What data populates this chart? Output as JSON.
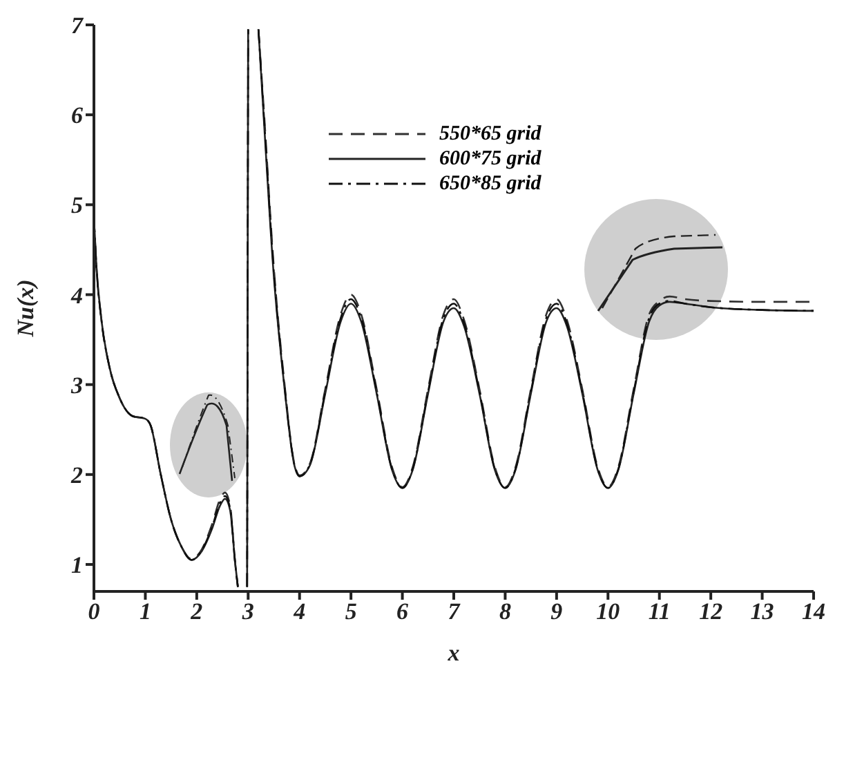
{
  "chart_data": {
    "type": "line",
    "xlabel": "x",
    "ylabel": "Nu(x)",
    "xlim": [
      0,
      14
    ],
    "xticks": [
      0,
      1,
      2,
      3,
      4,
      5,
      6,
      7,
      8,
      9,
      10,
      11,
      12,
      13,
      14
    ],
    "ylim": [
      0.7,
      7
    ],
    "yticks": [
      1,
      2,
      3,
      4,
      5,
      6,
      7
    ],
    "grid": false,
    "legend": "top",
    "marker": "none",
    "x": [
      0,
      0.05,
      0.15,
      0.3,
      0.5,
      0.75,
      1.0,
      1.1,
      1.3,
      1.5,
      1.7,
      1.9,
      2.1,
      2.3,
      2.45,
      2.55,
      2.65,
      2.75,
      2.8,
      2.9,
      2.98,
      3.0,
      3.1,
      3.2,
      3.3,
      3.5,
      3.7,
      3.9,
      4.0,
      4.2,
      4.5,
      4.8,
      5.0,
      5.2,
      5.5,
      5.8,
      6.0,
      6.2,
      6.5,
      6.8,
      7.0,
      7.2,
      7.5,
      7.8,
      8.0,
      8.2,
      8.5,
      8.8,
      9.0,
      9.2,
      9.5,
      9.8,
      10.0,
      10.2,
      10.5,
      10.8,
      11.0,
      11.2,
      11.5,
      12,
      13,
      14
    ],
    "series": [
      {
        "name": "550*65 grid",
        "color": "#303030",
        "line_style": "dashed",
        "values": [
          4.85,
          4.3,
          3.7,
          3.2,
          2.85,
          2.65,
          2.62,
          2.55,
          2.0,
          1.5,
          1.2,
          1.06,
          1.17,
          1.45,
          1.72,
          1.8,
          1.65,
          1.0,
          0.75,
          null,
          0.75,
          6.95,
          null,
          6.95,
          6.1,
          4.3,
          3.05,
          2.12,
          1.99,
          2.12,
          2.95,
          3.78,
          4.0,
          3.78,
          2.95,
          2.08,
          1.86,
          2.08,
          2.95,
          3.78,
          3.95,
          3.72,
          2.95,
          2.08,
          1.86,
          2.08,
          2.95,
          3.78,
          3.95,
          3.72,
          2.95,
          2.08,
          1.86,
          2.08,
          2.95,
          3.78,
          3.93,
          3.98,
          3.95,
          3.93,
          3.92,
          3.92
        ]
      },
      {
        "name": "600*75 grid",
        "color": "#222222",
        "line_style": "solid",
        "values": [
          4.85,
          4.3,
          3.7,
          3.2,
          2.85,
          2.65,
          2.62,
          2.55,
          2.0,
          1.5,
          1.2,
          1.05,
          1.15,
          1.4,
          1.65,
          1.73,
          1.6,
          1.0,
          0.75,
          null,
          0.75,
          6.95,
          null,
          6.95,
          6.0,
          4.2,
          3.0,
          2.1,
          1.98,
          2.1,
          2.9,
          3.7,
          3.9,
          3.7,
          2.9,
          2.05,
          1.85,
          2.05,
          2.9,
          3.7,
          3.85,
          3.65,
          2.9,
          2.05,
          1.85,
          2.05,
          2.9,
          3.7,
          3.85,
          3.65,
          2.9,
          2.05,
          1.85,
          2.05,
          2.9,
          3.7,
          3.88,
          3.92,
          3.9,
          3.86,
          3.83,
          3.82
        ]
      },
      {
        "name": "650*85 grid",
        "color": "#101010",
        "line_style": "dashdot",
        "values": [
          4.85,
          4.3,
          3.7,
          3.2,
          2.85,
          2.65,
          2.62,
          2.55,
          2.0,
          1.5,
          1.2,
          1.05,
          1.16,
          1.42,
          1.68,
          1.76,
          1.62,
          1.0,
          0.75,
          null,
          0.75,
          6.95,
          null,
          6.95,
          6.05,
          4.25,
          3.02,
          2.11,
          1.98,
          2.11,
          2.92,
          3.74,
          3.95,
          3.74,
          2.92,
          2.06,
          1.85,
          2.06,
          2.92,
          3.74,
          3.9,
          3.68,
          2.92,
          2.06,
          1.85,
          2.06,
          2.92,
          3.74,
          3.9,
          3.68,
          2.92,
          2.06,
          1.85,
          2.06,
          2.92,
          3.74,
          3.9,
          3.93,
          3.9,
          3.86,
          3.83,
          3.82
        ]
      }
    ]
  }
}
